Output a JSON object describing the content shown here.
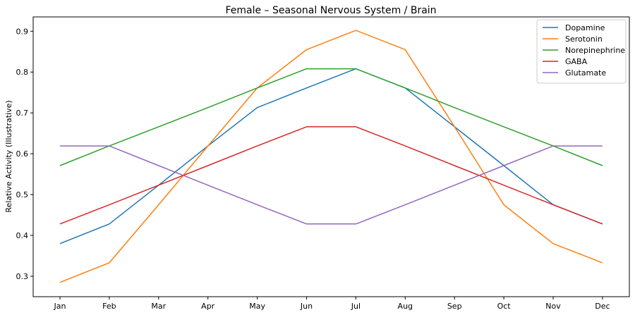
{
  "chart_data": {
    "type": "line",
    "title": "Female – Seasonal Nervous System / Brain",
    "xlabel": "",
    "ylabel": "Relative Activity (Illustrative)",
    "categories": [
      "Jan",
      "Feb",
      "Mar",
      "Apr",
      "May",
      "Jun",
      "Jul",
      "Aug",
      "Sep",
      "Oct",
      "Nov",
      "Dec"
    ],
    "ylim": [
      0.25,
      0.935
    ],
    "yticks": [
      "0.3",
      "0.4",
      "0.5",
      "0.6",
      "0.7",
      "0.8",
      "0.9"
    ],
    "grid": false,
    "legend_position": "top-right",
    "series": [
      {
        "name": "Dopamine",
        "color": "#1f77b4",
        "values": [
          0.38,
          0.428,
          0.523,
          0.619,
          0.713,
          0.761,
          0.808,
          0.761,
          0.666,
          0.571,
          0.475,
          0.428
        ]
      },
      {
        "name": "Serotonin",
        "color": "#ff7f0e",
        "values": [
          0.285,
          0.333,
          0.475,
          0.619,
          0.761,
          0.855,
          0.902,
          0.855,
          0.666,
          0.475,
          0.38,
          0.333
        ]
      },
      {
        "name": "Norepinephrine",
        "color": "#2ca02c",
        "values": [
          0.571,
          0.619,
          0.666,
          0.713,
          0.761,
          0.808,
          0.808,
          0.761,
          0.713,
          0.666,
          0.619,
          0.571
        ]
      },
      {
        "name": "GABA",
        "color": "#d62728",
        "values": [
          0.428,
          0.475,
          0.523,
          0.571,
          0.619,
          0.666,
          0.666,
          0.619,
          0.571,
          0.523,
          0.475,
          0.428
        ]
      },
      {
        "name": "Glutamate",
        "color": "#9467bd",
        "values": [
          0.619,
          0.619,
          0.571,
          0.523,
          0.475,
          0.428,
          0.428,
          0.475,
          0.523,
          0.571,
          0.619,
          0.619
        ]
      }
    ]
  }
}
